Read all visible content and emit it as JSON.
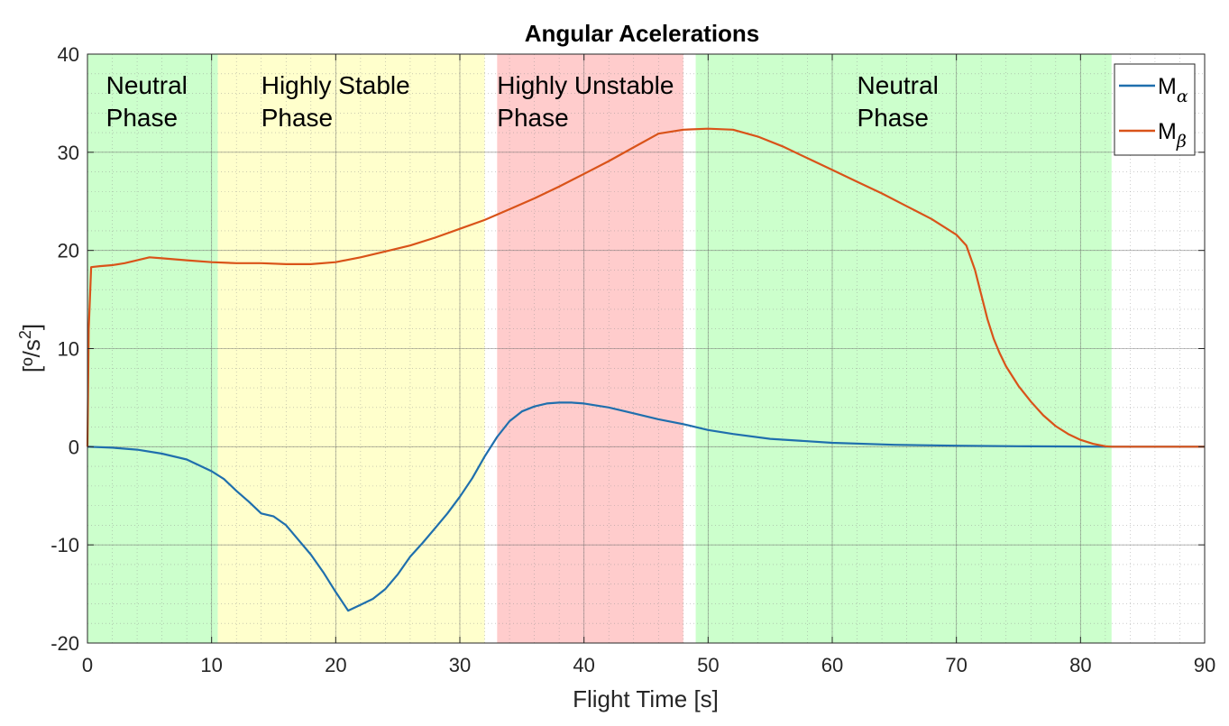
{
  "chart_data": {
    "type": "line",
    "title": "Angular Acelerations",
    "xlabel": "Flight Time [s]",
    "ylabel": {
      "main": "[º/s",
      "sup": "2",
      "close": "]"
    },
    "xlim": [
      0,
      90
    ],
    "ylim": [
      -20,
      40
    ],
    "xticks": [
      0,
      10,
      20,
      30,
      40,
      50,
      60,
      70,
      80,
      90
    ],
    "yticks": [
      -20,
      -10,
      0,
      10,
      20,
      30,
      40
    ],
    "grid": true,
    "minor_grid": true,
    "legend_position": "top-right",
    "phases": [
      {
        "label_lines": [
          "Neutral",
          "Phase"
        ],
        "x_start": 0,
        "x_end": 10.5,
        "color": "#ccffcc",
        "label_x": 1.5,
        "label_anchor": "start"
      },
      {
        "label_lines": [
          "Highly Stable",
          "Phase"
        ],
        "x_start": 10.5,
        "x_end": 32,
        "color": "#ffffcc",
        "label_x": 14,
        "label_anchor": "start"
      },
      {
        "label_lines": [
          "Highly Unstable",
          "Phase"
        ],
        "x_start": 33,
        "x_end": 48,
        "color": "#ffcccc",
        "label_x": 33,
        "label_anchor": "start"
      },
      {
        "label_lines": [
          "Neutral",
          "Phase"
        ],
        "x_start": 49,
        "x_end": 82.5,
        "color": "#ccffcc",
        "label_x": 62,
        "label_anchor": "start"
      }
    ],
    "series": [
      {
        "name": "M",
        "subscript": "α",
        "color": "#1f6fad",
        "x": [
          0,
          2,
          4,
          6,
          8,
          10,
          11,
          12,
          13,
          14,
          15,
          16,
          17,
          18,
          19,
          20,
          21,
          22,
          23,
          24,
          25,
          26,
          27,
          28,
          29,
          30,
          31,
          32,
          33,
          34,
          35,
          36,
          37,
          38,
          39,
          40,
          42,
          44,
          46,
          48,
          50,
          52,
          55,
          60,
          65,
          70,
          75,
          80,
          82.5,
          85,
          90
        ],
        "values": [
          0,
          -0.1,
          -0.3,
          -0.7,
          -1.3,
          -2.5,
          -3.3,
          -4.5,
          -5.6,
          -6.8,
          -7.1,
          -8,
          -9.5,
          -11,
          -12.8,
          -14.8,
          -16.7,
          -16.1,
          -15.5,
          -14.5,
          -13,
          -11.2,
          -9.8,
          -8.3,
          -6.8,
          -5.1,
          -3.2,
          -1,
          1,
          2.6,
          3.6,
          4.1,
          4.4,
          4.5,
          4.5,
          4.4,
          4,
          3.4,
          2.8,
          2.3,
          1.7,
          1.3,
          0.8,
          0.4,
          0.2,
          0.1,
          0.05,
          0.02,
          0,
          0,
          0
        ]
      },
      {
        "name": "M",
        "subscript": "β",
        "color": "#d95319",
        "x": [
          0,
          0.1,
          0.3,
          1,
          2,
          3,
          4,
          5,
          6,
          8,
          10,
          12,
          14,
          16,
          18,
          20,
          22,
          24,
          26,
          28,
          30,
          32,
          34,
          36,
          38,
          40,
          42,
          44,
          46,
          48,
          50,
          52,
          54,
          56,
          58,
          60,
          62,
          64,
          66,
          68,
          70,
          70.8,
          71.5,
          72,
          72.5,
          73,
          73.5,
          74,
          75,
          76,
          77,
          78,
          79,
          80,
          81,
          82,
          82.5,
          85,
          90
        ],
        "values": [
          0,
          12,
          18.3,
          18.4,
          18.5,
          18.7,
          19,
          19.3,
          19.2,
          19,
          18.8,
          18.7,
          18.7,
          18.6,
          18.6,
          18.8,
          19.3,
          19.9,
          20.5,
          21.3,
          22.2,
          23.1,
          24.2,
          25.3,
          26.5,
          27.8,
          29.1,
          30.5,
          31.9,
          32.3,
          32.4,
          32.3,
          31.6,
          30.6,
          29.4,
          28.2,
          27,
          25.8,
          24.5,
          23.2,
          21.6,
          20.5,
          18,
          15.5,
          13,
          11,
          9.5,
          8.2,
          6.2,
          4.6,
          3.2,
          2.1,
          1.3,
          0.7,
          0.3,
          0.05,
          0,
          0,
          0
        ]
      }
    ]
  }
}
